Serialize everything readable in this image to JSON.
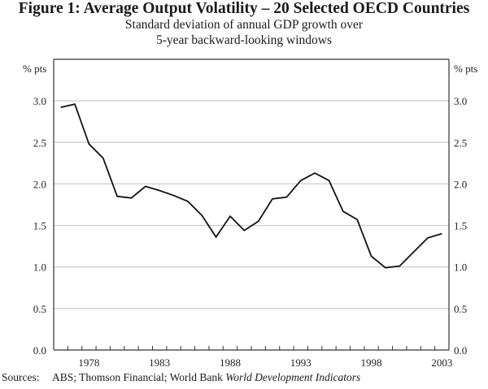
{
  "title": "Figure 1: Average Output Volatility – 20 Selected OECD Countries",
  "subtitle_line1": "Standard deviation of annual GDP growth over",
  "subtitle_line2": "5-year backward-looking windows",
  "sources": {
    "label": "Sources:",
    "text": "ABS; Thomson Financial; World Bank ",
    "italic": "World Development Indicators"
  },
  "chart_data": {
    "type": "line",
    "title": "Figure 1: Average Output Volatility – 20 Selected OECD Countries",
    "subtitle": "Standard deviation of annual GDP growth over 5-year backward-looking windows",
    "xlabel": "",
    "ylabel_left": "% pts",
    "ylabel_right": "% pts",
    "ylim": [
      0,
      3.5
    ],
    "yticks": [
      0.0,
      0.5,
      1.0,
      1.5,
      2.0,
      2.5,
      3.0
    ],
    "ytick_labels": [
      "0.0",
      "0.5",
      "1.0",
      "1.5",
      "2.0",
      "2.5",
      "3.0"
    ],
    "xlim": [
      1976,
      2003
    ],
    "xtick_labels": [
      "1978",
      "1983",
      "1988",
      "1993",
      "1998",
      "2003"
    ],
    "grid": "horizontal",
    "x": [
      1976,
      1977,
      1978,
      1979,
      1980,
      1981,
      1982,
      1983,
      1984,
      1985,
      1986,
      1987,
      1988,
      1989,
      1990,
      1991,
      1992,
      1993,
      1994,
      1995,
      1996,
      1997,
      1998,
      1999,
      2000,
      2001,
      2002,
      2003
    ],
    "series": [
      {
        "name": "Average output volatility",
        "color": "#111111",
        "values": [
          2.92,
          2.96,
          2.48,
          2.31,
          1.85,
          1.83,
          1.97,
          1.92,
          1.86,
          1.79,
          1.62,
          1.36,
          1.61,
          1.44,
          1.55,
          1.82,
          1.84,
          2.04,
          2.13,
          2.04,
          1.67,
          1.57,
          1.13,
          0.99,
          1.01,
          1.18,
          1.35,
          1.4
        ]
      }
    ]
  }
}
